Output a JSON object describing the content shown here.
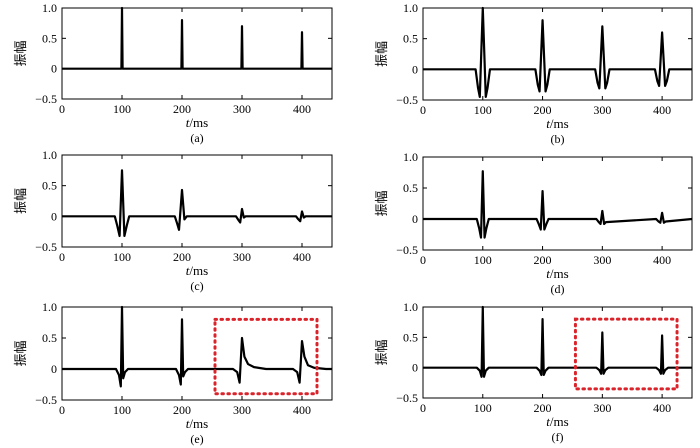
{
  "chart_data": [
    {
      "type": "line",
      "panel_label": "(a)",
      "ylabel": "振幅",
      "xlabel_italic": "t",
      "xlabel_unit": "/ms",
      "xlim": [
        0,
        450
      ],
      "ylim": [
        -0.5,
        1.0
      ],
      "xticks": [
        "0",
        "100",
        "200",
        "300",
        "400"
      ],
      "yticks": [
        "−0.5",
        "0",
        "0.5",
        "1.0"
      ],
      "series": [
        {
          "x": [
            0,
            99,
            100,
            101,
            199,
            200,
            201,
            299,
            300,
            301,
            399,
            400,
            401,
            450
          ],
          "y": [
            0,
            0,
            1.0,
            0,
            0,
            0.8,
            0,
            0,
            0.7,
            0,
            0,
            0.6,
            0,
            0
          ]
        }
      ]
    },
    {
      "type": "line",
      "panel_label": "(b)",
      "ylabel": "振幅",
      "xlabel_italic": "t",
      "xlabel_unit": "/ms",
      "xlim": [
        0,
        450
      ],
      "ylim": [
        -0.5,
        1.0
      ],
      "xticks": [
        "0",
        "100",
        "200",
        "300",
        "400"
      ],
      "yticks": [
        "−0.5",
        "0",
        "0.5",
        "1.0"
      ],
      "series": [
        {
          "x": [
            0,
            88,
            92,
            95,
            100,
            105,
            108,
            112,
            188,
            192,
            195,
            200,
            205,
            208,
            212,
            288,
            292,
            295,
            300,
            305,
            308,
            312,
            388,
            392,
            395,
            400,
            405,
            408,
            412,
            450
          ],
          "y": [
            0,
            0,
            -0.3,
            -0.45,
            1.0,
            -0.45,
            -0.3,
            0,
            0,
            -0.25,
            -0.36,
            0.8,
            -0.36,
            -0.25,
            0,
            0,
            -0.22,
            -0.31,
            0.7,
            -0.31,
            -0.22,
            0,
            0,
            -0.19,
            -0.27,
            0.6,
            -0.27,
            -0.19,
            0,
            0
          ]
        }
      ]
    },
    {
      "type": "line",
      "panel_label": "(c)",
      "ylabel": "振幅",
      "xlabel_italic": "t",
      "xlabel_unit": "/ms",
      "xlim": [
        0,
        450
      ],
      "ylim": [
        -0.5,
        1.0
      ],
      "xticks": [
        "0",
        "100",
        "200",
        "300",
        "400"
      ],
      "yticks": [
        "−0.5",
        "0",
        "0.5",
        "1.0"
      ],
      "series": [
        {
          "x": [
            0,
            88,
            92,
            96,
            100,
            104,
            108,
            112,
            188,
            192,
            195,
            200,
            204,
            208,
            290,
            294,
            297,
            300,
            303,
            306,
            390,
            394,
            397,
            400,
            403,
            406,
            450
          ],
          "y": [
            0,
            0,
            -0.15,
            -0.32,
            0.75,
            -0.32,
            -0.15,
            0,
            0,
            -0.12,
            -0.22,
            0.43,
            -0.05,
            0,
            0,
            -0.06,
            -0.1,
            0.12,
            -0.02,
            0,
            0,
            -0.05,
            -0.08,
            0.08,
            -0.02,
            0,
            0
          ]
        }
      ]
    },
    {
      "type": "line",
      "panel_label": "(d)",
      "ylabel": "振幅",
      "xlabel_italic": "t",
      "xlabel_unit": "/ms",
      "xlim": [
        0,
        450
      ],
      "ylim": [
        -0.5,
        1.0
      ],
      "xticks": [
        "0",
        "100",
        "200",
        "300",
        "400"
      ],
      "yticks": [
        "−0.5",
        "0",
        "0.5",
        "1.0"
      ],
      "series": [
        {
          "x": [
            0,
            90,
            94,
            97,
            100,
            103,
            106,
            110,
            190,
            194,
            197,
            200,
            203,
            206,
            210,
            290,
            294,
            297,
            300,
            303,
            306,
            390,
            394,
            397,
            400,
            403,
            406,
            450
          ],
          "y": [
            0,
            0,
            -0.15,
            -0.3,
            0.77,
            -0.3,
            -0.15,
            0,
            0,
            -0.09,
            -0.17,
            0.45,
            -0.17,
            -0.09,
            0,
            0,
            -0.05,
            -0.08,
            0.13,
            -0.08,
            -0.05,
            0,
            -0.04,
            -0.06,
            0.1,
            -0.06,
            -0.04,
            0
          ]
        }
      ]
    },
    {
      "type": "line",
      "panel_label": "(e)",
      "ylabel": "振幅",
      "xlabel_italic": "t",
      "xlabel_unit": "/ms",
      "xlim": [
        0,
        450
      ],
      "ylim": [
        -0.5,
        1.0
      ],
      "xticks": [
        "0",
        "100",
        "200",
        "300",
        "400"
      ],
      "yticks": [
        "−0.5",
        "0",
        "0.5",
        "1.0"
      ],
      "highlight": {
        "x": [
          255,
          425
        ],
        "y": [
          -0.4,
          0.8
        ]
      },
      "series": [
        {
          "x": [
            0,
            90,
            95,
            98,
            100,
            102,
            105,
            110,
            190,
            195,
            198,
            200,
            202,
            205,
            210,
            285,
            292,
            296,
            300,
            304,
            310,
            320,
            340,
            385,
            392,
            396,
            400,
            404,
            410,
            420,
            440,
            450
          ],
          "y": [
            0,
            0,
            -0.1,
            -0.28,
            1.0,
            -0.15,
            -0.05,
            0,
            0,
            -0.1,
            -0.25,
            0.8,
            -0.12,
            -0.05,
            0,
            0,
            -0.05,
            -0.22,
            0.5,
            0.2,
            0.08,
            0.03,
            0,
            0,
            -0.05,
            -0.22,
            0.45,
            0.2,
            0.06,
            0.02,
            0,
            0
          ]
        }
      ]
    },
    {
      "type": "line",
      "panel_label": "(f)",
      "ylabel": "振幅",
      "xlabel_italic": "t",
      "xlabel_unit": "/ms",
      "xlim": [
        0,
        450
      ],
      "ylim": [
        -0.5,
        1.0
      ],
      "xticks": [
        "0",
        "100",
        "200",
        "300",
        "400"
      ],
      "yticks": [
        "−0.5",
        "0",
        "0.5",
        "1.0"
      ],
      "highlight": {
        "x": [
          255,
          425
        ],
        "y": [
          -0.35,
          0.8
        ]
      },
      "series": [
        {
          "x": [
            0,
            90,
            95,
            98,
            100,
            102,
            105,
            110,
            190,
            195,
            198,
            200,
            202,
            205,
            210,
            290,
            295,
            298,
            300,
            302,
            305,
            310,
            390,
            395,
            398,
            400,
            402,
            405,
            410,
            450
          ],
          "y": [
            0,
            0,
            -0.05,
            -0.15,
            1.0,
            -0.15,
            -0.05,
            0,
            0,
            -0.05,
            -0.12,
            0.8,
            -0.12,
            -0.05,
            0,
            0,
            -0.04,
            -0.1,
            0.58,
            -0.1,
            -0.04,
            0,
            0,
            -0.04,
            -0.1,
            0.53,
            -0.1,
            -0.04,
            0,
            0
          ]
        }
      ]
    }
  ]
}
